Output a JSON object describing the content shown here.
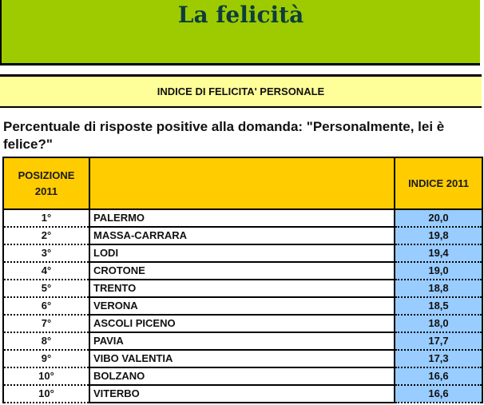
{
  "header": {
    "title": "La felicità",
    "title_band_color": "#9dcb00",
    "subtitle": "INDICE DI FELICITA' PERSONALE",
    "subtitle_band_color": "#ffff99"
  },
  "question": "Percentuale di risposte positive alla domanda: \"Personalmente, lei è felice?\"",
  "table": {
    "header_color": "#ffcc00",
    "index_cell_color": "#99ccff",
    "columns": {
      "position_line1": "POSIZIONE",
      "position_line2": "2011",
      "city": "",
      "index": "INDICE 2011"
    },
    "rows": [
      {
        "position": "1°",
        "city": "PALERMO",
        "index": "20,0"
      },
      {
        "position": "2°",
        "city": "MASSA-CARRARA",
        "index": "19,8"
      },
      {
        "position": "3°",
        "city": "LODI",
        "index": "19,4"
      },
      {
        "position": "4°",
        "city": "CROTONE",
        "index": "19,0"
      },
      {
        "position": "5°",
        "city": "TRENTO",
        "index": "18,8"
      },
      {
        "position": "6°",
        "city": "VERONA",
        "index": "18,5"
      },
      {
        "position": "7°",
        "city": "ASCOLI PICENO",
        "index": "18,0"
      },
      {
        "position": "8°",
        "city": "PAVIA",
        "index": "17,7"
      },
      {
        "position": "9°",
        "city": "VIBO VALENTIA",
        "index": "17,3"
      },
      {
        "position": "10°",
        "city": "BOLZANO",
        "index": "16,6"
      },
      {
        "position": "10°",
        "city": "VITERBO",
        "index": "16,6"
      }
    ]
  }
}
